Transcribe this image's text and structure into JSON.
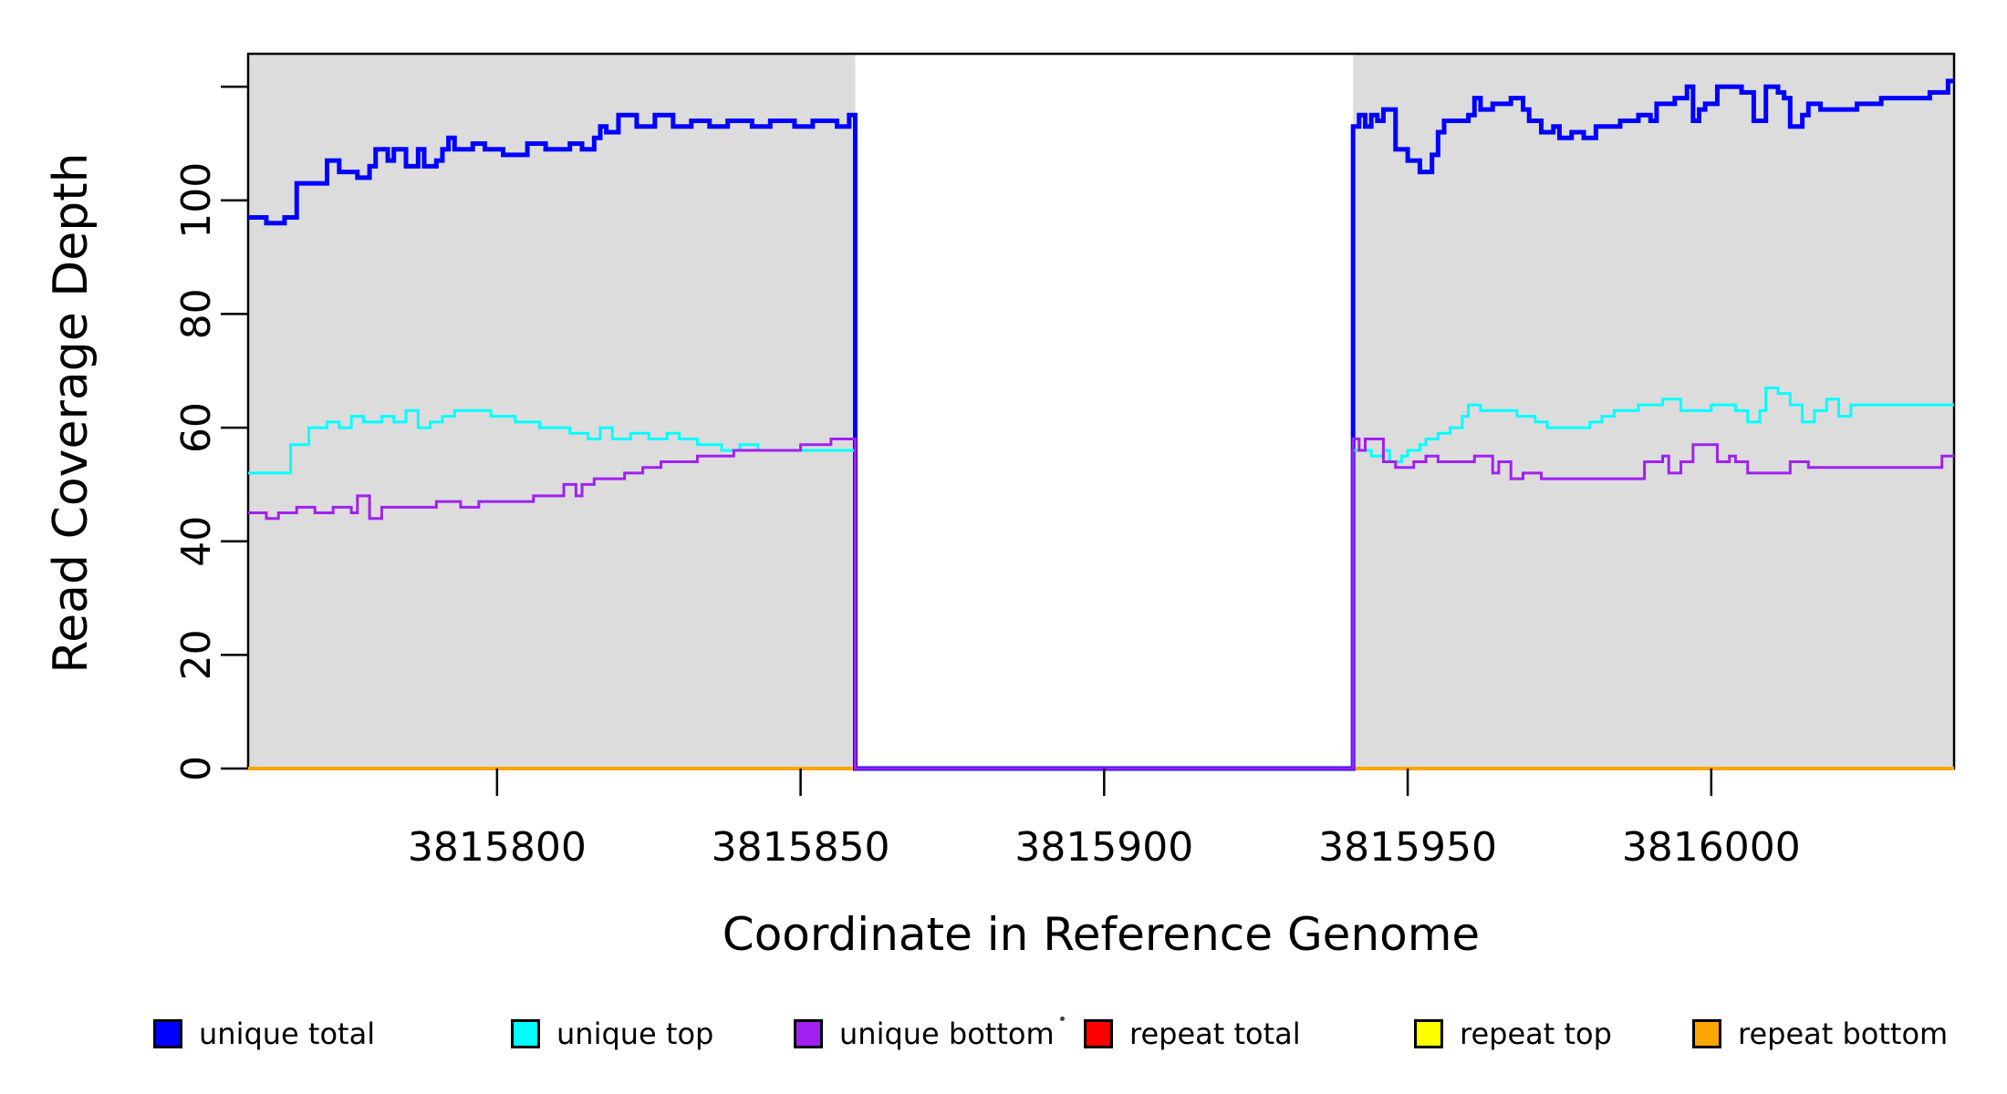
{
  "figure": {
    "background": "#ffffff",
    "plot_background": "#dcdcdc",
    "axis_color": "#000000"
  },
  "chart_data": {
    "type": "line",
    "step_style": "step-after",
    "title": "",
    "xlabel": "Coordinate in Reference Genome",
    "ylabel": "Read Coverage Depth",
    "xlim": [
      3815759,
      3816040
    ],
    "ylim": [
      0,
      125.8
    ],
    "grid": false,
    "legend_position": "bottom",
    "plot_background": "#dcdcdc",
    "x_ticks": [
      {
        "value": 3815800,
        "label": "3815800"
      },
      {
        "value": 3815850,
        "label": "3815850"
      },
      {
        "value": 3815900,
        "label": "3815900"
      },
      {
        "value": 3815950,
        "label": "3815950"
      },
      {
        "value": 3816000,
        "label": "3816000"
      }
    ],
    "y_ticks": [
      {
        "value": 0,
        "label": "0"
      },
      {
        "value": 20,
        "label": "20"
      },
      {
        "value": 40,
        "label": "40"
      },
      {
        "value": 60,
        "label": "60"
      },
      {
        "value": 80,
        "label": "80"
      },
      {
        "value": 100,
        "label": "100"
      },
      {
        "value": 120,
        "label": ""
      }
    ],
    "shaded_regions": [
      {
        "from": 3815759,
        "to": 3815859
      },
      {
        "from": 3815941,
        "to": 3816040
      }
    ],
    "coverage_gap": {
      "from": 3815859,
      "to": 3815941
    },
    "series": [
      {
        "name": "repeat total",
        "color": "#ff0000",
        "line_width": 3.5,
        "steps": [
          [
            3815759,
            0
          ]
        ]
      },
      {
        "name": "repeat top",
        "color": "#ffff00",
        "line_width": 3.5,
        "steps": [
          [
            3815759,
            0
          ]
        ]
      },
      {
        "name": "repeat bottom",
        "color": "#ffa500",
        "line_width": 4,
        "steps": [
          [
            3815759,
            0
          ]
        ]
      },
      {
        "name": "unique total",
        "color": "#0000ff",
        "line_width": 5,
        "steps": [
          [
            3815759,
            97
          ],
          [
            3815762,
            96
          ],
          [
            3815765,
            97
          ],
          [
            3815767,
            103
          ],
          [
            3815772,
            107
          ],
          [
            3815774,
            105
          ],
          [
            3815777,
            104
          ],
          [
            3815779,
            106
          ],
          [
            3815780,
            109
          ],
          [
            3815782,
            107
          ],
          [
            3815783,
            109
          ],
          [
            3815785,
            106
          ],
          [
            3815787,
            109
          ],
          [
            3815788,
            106
          ],
          [
            3815790,
            107
          ],
          [
            3815791,
            109
          ],
          [
            3815792,
            111
          ],
          [
            3815793,
            109
          ],
          [
            3815796,
            110
          ],
          [
            3815798,
            109
          ],
          [
            3815801,
            108
          ],
          [
            3815805,
            110
          ],
          [
            3815808,
            109
          ],
          [
            3815812,
            110
          ],
          [
            3815814,
            109
          ],
          [
            3815816,
            111
          ],
          [
            3815817,
            113
          ],
          [
            3815818,
            112
          ],
          [
            3815820,
            115
          ],
          [
            3815823,
            113
          ],
          [
            3815826,
            115
          ],
          [
            3815829,
            113
          ],
          [
            3815832,
            114
          ],
          [
            3815835,
            113
          ],
          [
            3815838,
            114
          ],
          [
            3815842,
            113
          ],
          [
            3815845,
            114
          ],
          [
            3815849,
            113
          ],
          [
            3815852,
            114
          ],
          [
            3815856,
            113
          ],
          [
            3815858,
            115
          ],
          [
            3815859,
            0
          ],
          [
            3815941,
            113
          ],
          [
            3815942,
            115
          ],
          [
            3815943,
            113
          ],
          [
            3815944,
            115
          ],
          [
            3815945,
            114
          ],
          [
            3815946,
            116
          ],
          [
            3815948,
            109
          ],
          [
            3815950,
            107
          ],
          [
            3815952,
            105
          ],
          [
            3815954,
            108
          ],
          [
            3815955,
            112
          ],
          [
            3815956,
            114
          ],
          [
            3815960,
            115
          ],
          [
            3815961,
            118
          ],
          [
            3815962,
            116
          ],
          [
            3815964,
            117
          ],
          [
            3815967,
            118
          ],
          [
            3815969,
            116
          ],
          [
            3815970,
            114
          ],
          [
            3815972,
            112
          ],
          [
            3815974,
            113
          ],
          [
            3815975,
            111
          ],
          [
            3815977,
            112
          ],
          [
            3815979,
            111
          ],
          [
            3815981,
            113
          ],
          [
            3815985,
            114
          ],
          [
            3815988,
            115
          ],
          [
            3815990,
            114
          ],
          [
            3815991,
            117
          ],
          [
            3815994,
            118
          ],
          [
            3815996,
            120
          ],
          [
            3815997,
            114
          ],
          [
            3815998,
            116
          ],
          [
            3815999,
            117
          ],
          [
            3816001,
            120
          ],
          [
            3816005,
            119
          ],
          [
            3816007,
            114
          ],
          [
            3816009,
            120
          ],
          [
            3816011,
            119
          ],
          [
            3816012,
            118
          ],
          [
            3816013,
            113
          ],
          [
            3816015,
            115
          ],
          [
            3816016,
            117
          ],
          [
            3816018,
            116
          ],
          [
            3816024,
            117
          ],
          [
            3816028,
            118
          ],
          [
            3816033,
            118
          ],
          [
            3816036,
            119
          ],
          [
            3816039,
            121
          ]
        ]
      },
      {
        "name": "unique top",
        "color": "#00ffff",
        "line_width": 3,
        "steps": [
          [
            3815759,
            52
          ],
          [
            3815766,
            57
          ],
          [
            3815769,
            60
          ],
          [
            3815772,
            61
          ],
          [
            3815774,
            60
          ],
          [
            3815776,
            62
          ],
          [
            3815778,
            61
          ],
          [
            3815781,
            62
          ],
          [
            3815783,
            61
          ],
          [
            3815785,
            63
          ],
          [
            3815787,
            60
          ],
          [
            3815789,
            61
          ],
          [
            3815791,
            62
          ],
          [
            3815793,
            63
          ],
          [
            3815799,
            62
          ],
          [
            3815803,
            61
          ],
          [
            3815807,
            60
          ],
          [
            3815812,
            59
          ],
          [
            3815815,
            58
          ],
          [
            3815817,
            60
          ],
          [
            3815819,
            58
          ],
          [
            3815822,
            59
          ],
          [
            3815825,
            58
          ],
          [
            3815828,
            59
          ],
          [
            3815830,
            58
          ],
          [
            3815833,
            57
          ],
          [
            3815837,
            56
          ],
          [
            3815840,
            57
          ],
          [
            3815843,
            56
          ],
          [
            3815859,
            0
          ],
          [
            3815941,
            56
          ],
          [
            3815944,
            55
          ],
          [
            3815946,
            56
          ],
          [
            3815947,
            54
          ],
          [
            3815949,
            55
          ],
          [
            3815950,
            56
          ],
          [
            3815952,
            57
          ],
          [
            3815953,
            58
          ],
          [
            3815955,
            59
          ],
          [
            3815957,
            60
          ],
          [
            3815959,
            62
          ],
          [
            3815960,
            64
          ],
          [
            3815962,
            63
          ],
          [
            3815968,
            62
          ],
          [
            3815971,
            61
          ],
          [
            3815973,
            60
          ],
          [
            3815980,
            61
          ],
          [
            3815982,
            62
          ],
          [
            3815984,
            63
          ],
          [
            3815988,
            64
          ],
          [
            3815992,
            65
          ],
          [
            3815995,
            63
          ],
          [
            3816000,
            64
          ],
          [
            3816004,
            63
          ],
          [
            3816006,
            61
          ],
          [
            3816008,
            63
          ],
          [
            3816009,
            67
          ],
          [
            3816011,
            66
          ],
          [
            3816013,
            64
          ],
          [
            3816015,
            61
          ],
          [
            3816017,
            63
          ],
          [
            3816019,
            65
          ],
          [
            3816021,
            62
          ],
          [
            3816023,
            64
          ]
        ]
      },
      {
        "name": "unique bottom",
        "color": "#a020f0",
        "line_width": 3,
        "steps": [
          [
            3815759,
            45
          ],
          [
            3815762,
            44
          ],
          [
            3815764,
            45
          ],
          [
            3815767,
            46
          ],
          [
            3815770,
            45
          ],
          [
            3815773,
            46
          ],
          [
            3815776,
            45
          ],
          [
            3815777,
            48
          ],
          [
            3815779,
            44
          ],
          [
            3815781,
            46
          ],
          [
            3815790,
            47
          ],
          [
            3815794,
            46
          ],
          [
            3815797,
            47
          ],
          [
            3815806,
            48
          ],
          [
            3815811,
            50
          ],
          [
            3815813,
            48
          ],
          [
            3815814,
            50
          ],
          [
            3815816,
            51
          ],
          [
            3815821,
            52
          ],
          [
            3815824,
            53
          ],
          [
            3815827,
            54
          ],
          [
            3815833,
            55
          ],
          [
            3815839,
            56
          ],
          [
            3815846,
            56
          ],
          [
            3815850,
            57
          ],
          [
            3815855,
            58
          ],
          [
            3815859,
            0
          ],
          [
            3815941,
            58
          ],
          [
            3815942,
            56
          ],
          [
            3815943,
            58
          ],
          [
            3815946,
            54
          ],
          [
            3815948,
            53
          ],
          [
            3815951,
            54
          ],
          [
            3815953,
            55
          ],
          [
            3815955,
            54
          ],
          [
            3815958,
            54
          ],
          [
            3815961,
            55
          ],
          [
            3815964,
            52
          ],
          [
            3815965,
            54
          ],
          [
            3815967,
            51
          ],
          [
            3815969,
            52
          ],
          [
            3815972,
            51
          ],
          [
            3815989,
            54
          ],
          [
            3815992,
            55
          ],
          [
            3815993,
            52
          ],
          [
            3815995,
            54
          ],
          [
            3815997,
            57
          ],
          [
            3816001,
            54
          ],
          [
            3816003,
            55
          ],
          [
            3816004,
            54
          ],
          [
            3816006,
            52
          ],
          [
            3816013,
            54
          ],
          [
            3816016,
            53
          ],
          [
            3816036,
            53
          ],
          [
            3816038,
            55
          ]
        ]
      }
    ],
    "legend": {
      "items": [
        {
          "label": "unique total",
          "color": "#0000ff"
        },
        {
          "label": "unique top",
          "color": "#00ffff"
        },
        {
          "label": "unique bottom",
          "color": "#a020f0"
        },
        {
          "label": "repeat total",
          "color": "#ff0000"
        },
        {
          "label": "repeat top",
          "color": "#ffff00"
        },
        {
          "label": "repeat bottom",
          "color": "#ffa500"
        }
      ]
    }
  }
}
